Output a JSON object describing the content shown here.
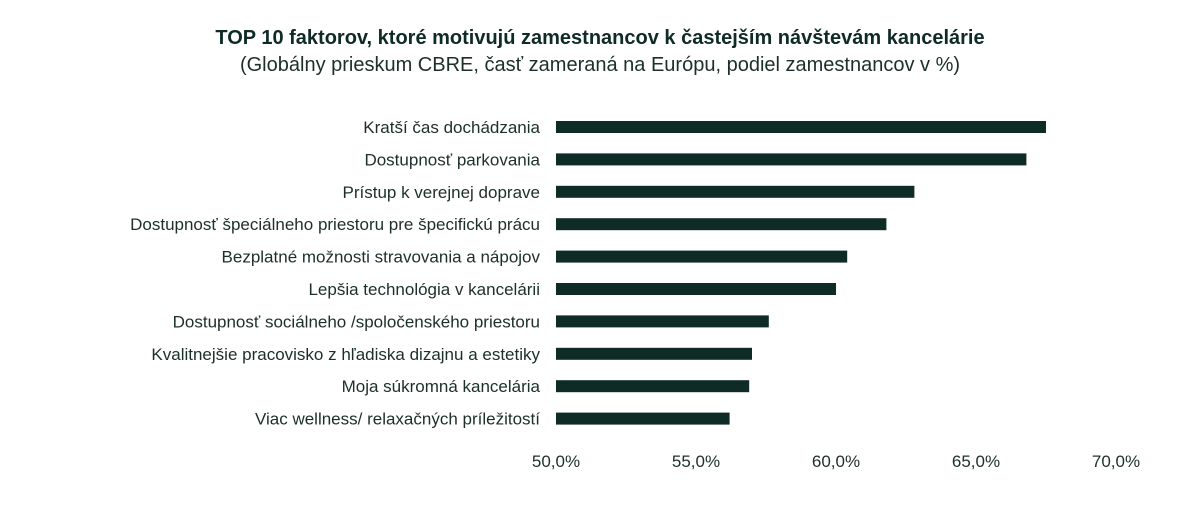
{
  "chart_data": {
    "type": "bar",
    "orientation": "horizontal",
    "title": "TOP 10 faktorov, ktoré motivujú zamestnancov k častejším návštevám kancelárie",
    "subtitle": "(Globálny prieskum CBRE, časť zameraná na Európu, podiel zamestnancov v %)",
    "xlabel": "",
    "ylabel": "",
    "xlim": [
      50,
      70
    ],
    "x_ticks": [
      "50,0%",
      "55,0%",
      "60,0%",
      "65,0%",
      "70,0%"
    ],
    "x_tick_values": [
      50,
      55,
      60,
      65,
      70
    ],
    "grid": false,
    "legend": "none",
    "bar_color": "#0f2b26",
    "categories": [
      "Kratší čas dochádzania",
      "Dostupnosť parkovania",
      "Prístup k verejnej doprave",
      "Dostupnosť špeciálneho priestoru pre špecifickú prácu",
      "Bezplatné možnosti stravovania a nápojov",
      "Lepšia technológia v kancelárii",
      "Dostupnosť sociálneho /spoločenského priestoru",
      "Kvalitnejšie pracovisko z hľadiska dizajnu a estetiky",
      "Moja súkromná kancelária",
      "Viac wellness/ relaxačných príležitostí"
    ],
    "values": [
      67.5,
      66.8,
      62.8,
      61.8,
      60.4,
      60.0,
      57.6,
      57.0,
      56.9,
      56.2
    ]
  }
}
